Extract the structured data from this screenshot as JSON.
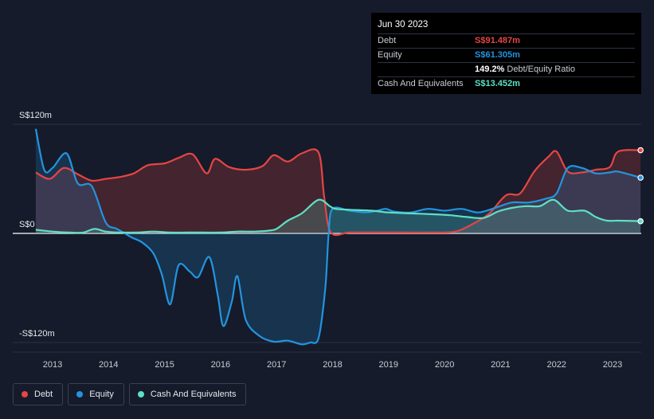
{
  "tooltip": {
    "date": "Jun 30 2023",
    "rows": [
      {
        "label": "Debt",
        "value": "S$91.487m"
      },
      {
        "label": "Equity",
        "value": "S$61.305m"
      },
      {
        "label": "",
        "value": "149.2%",
        "suffix": "Debt/Equity Ratio"
      },
      {
        "label": "Cash And Equivalents",
        "value": "S$13.452m"
      }
    ]
  },
  "legend": [
    {
      "label": "Debt"
    },
    {
      "label": "Equity"
    },
    {
      "label": "Cash And Equivalents"
    }
  ],
  "colors": {
    "debt": "#e64545",
    "equity": "#2394df",
    "cash": "#5ee0c4",
    "background": "#151b2a"
  },
  "chart_data": {
    "type": "area",
    "title": "",
    "xlabel": "",
    "ylabel": "",
    "ylim": [
      -130,
      130
    ],
    "y_tick_labels": [
      {
        "value": 120,
        "label": "S$120m"
      },
      {
        "value": 0,
        "label": "S$0"
      },
      {
        "value": -120,
        "label": "-S$120m"
      }
    ],
    "x_ticks": [
      "2013",
      "2014",
      "2015",
      "2016",
      "2017",
      "2018",
      "2019",
      "2020",
      "2021",
      "2022",
      "2023"
    ],
    "xlim": [
      2012.7,
      2023.5
    ],
    "series": [
      {
        "name": "Debt",
        "points": [
          [
            2012.7,
            67
          ],
          [
            2012.95,
            60
          ],
          [
            2013.2,
            72
          ],
          [
            2013.45,
            65
          ],
          [
            2013.7,
            58
          ],
          [
            2013.95,
            60
          ],
          [
            2014.2,
            62
          ],
          [
            2014.45,
            66
          ],
          [
            2014.7,
            75
          ],
          [
            2015.0,
            77
          ],
          [
            2015.25,
            83
          ],
          [
            2015.5,
            87
          ],
          [
            2015.75,
            66
          ],
          [
            2015.9,
            82
          ],
          [
            2016.15,
            73
          ],
          [
            2016.45,
            70
          ],
          [
            2016.75,
            74
          ],
          [
            2016.95,
            86
          ],
          [
            2017.2,
            79
          ],
          [
            2017.45,
            88
          ],
          [
            2017.75,
            89
          ],
          [
            2017.85,
            40
          ],
          [
            2017.97,
            1
          ],
          [
            2018.3,
            1
          ],
          [
            2018.8,
            1
          ],
          [
            2019.3,
            1
          ],
          [
            2019.8,
            1
          ],
          [
            2020.2,
            2
          ],
          [
            2020.55,
            12
          ],
          [
            2020.8,
            22
          ],
          [
            2021.1,
            42
          ],
          [
            2021.35,
            44
          ],
          [
            2021.6,
            68
          ],
          [
            2021.85,
            84
          ],
          [
            2022.0,
            90
          ],
          [
            2022.2,
            68
          ],
          [
            2022.45,
            67
          ],
          [
            2022.7,
            70
          ],
          [
            2022.95,
            73
          ],
          [
            2023.1,
            90
          ],
          [
            2023.5,
            91.5
          ]
        ]
      },
      {
        "name": "Equity",
        "points": [
          [
            2012.7,
            115
          ],
          [
            2012.85,
            70
          ],
          [
            2013.0,
            72
          ],
          [
            2013.25,
            88
          ],
          [
            2013.45,
            55
          ],
          [
            2013.7,
            52
          ],
          [
            2013.95,
            12
          ],
          [
            2014.15,
            5
          ],
          [
            2014.4,
            -4
          ],
          [
            2014.6,
            -10
          ],
          [
            2014.8,
            -22
          ],
          [
            2014.95,
            -45
          ],
          [
            2015.1,
            -78
          ],
          [
            2015.25,
            -35
          ],
          [
            2015.45,
            -42
          ],
          [
            2015.6,
            -48
          ],
          [
            2015.8,
            -26
          ],
          [
            2015.95,
            -68
          ],
          [
            2016.05,
            -102
          ],
          [
            2016.2,
            -75
          ],
          [
            2016.3,
            -47
          ],
          [
            2016.45,
            -95
          ],
          [
            2016.7,
            -113
          ],
          [
            2016.95,
            -119
          ],
          [
            2017.2,
            -118
          ],
          [
            2017.45,
            -122
          ],
          [
            2017.6,
            -120
          ],
          [
            2017.75,
            -115
          ],
          [
            2017.87,
            -60
          ],
          [
            2017.93,
            0
          ],
          [
            2018.0,
            27
          ],
          [
            2018.3,
            25
          ],
          [
            2018.6,
            23
          ],
          [
            2018.8,
            25
          ],
          [
            2018.95,
            27
          ],
          [
            2019.1,
            24
          ],
          [
            2019.4,
            23
          ],
          [
            2019.7,
            27
          ],
          [
            2020.0,
            25
          ],
          [
            2020.3,
            27
          ],
          [
            2020.6,
            23
          ],
          [
            2020.9,
            28
          ],
          [
            2021.2,
            34
          ],
          [
            2021.5,
            34
          ],
          [
            2021.8,
            38
          ],
          [
            2022.0,
            44
          ],
          [
            2022.2,
            72
          ],
          [
            2022.45,
            72
          ],
          [
            2022.7,
            66
          ],
          [
            2022.95,
            67
          ],
          [
            2023.1,
            68
          ],
          [
            2023.5,
            61.3
          ]
        ]
      },
      {
        "name": "Cash And Equivalents",
        "points": [
          [
            2012.7,
            4
          ],
          [
            2013.0,
            2
          ],
          [
            2013.3,
            1
          ],
          [
            2013.55,
            1
          ],
          [
            2013.75,
            5
          ],
          [
            2013.95,
            2
          ],
          [
            2014.2,
            1
          ],
          [
            2014.5,
            1
          ],
          [
            2014.8,
            2
          ],
          [
            2015.1,
            1
          ],
          [
            2015.4,
            1
          ],
          [
            2015.7,
            1
          ],
          [
            2016.0,
            1
          ],
          [
            2016.3,
            2
          ],
          [
            2016.6,
            2
          ],
          [
            2016.85,
            3
          ],
          [
            2017.0,
            5
          ],
          [
            2017.2,
            14
          ],
          [
            2017.45,
            22
          ],
          [
            2017.75,
            37
          ],
          [
            2017.95,
            30
          ],
          [
            2018.05,
            27
          ],
          [
            2018.3,
            26
          ],
          [
            2018.7,
            25
          ],
          [
            2019.0,
            23
          ],
          [
            2019.4,
            22
          ],
          [
            2019.8,
            21
          ],
          [
            2020.1,
            20
          ],
          [
            2020.4,
            18
          ],
          [
            2020.7,
            17
          ],
          [
            2020.95,
            24
          ],
          [
            2021.2,
            28
          ],
          [
            2021.45,
            30
          ],
          [
            2021.7,
            30
          ],
          [
            2021.95,
            37
          ],
          [
            2022.2,
            25
          ],
          [
            2022.5,
            25
          ],
          [
            2022.7,
            18
          ],
          [
            2022.9,
            14
          ],
          [
            2023.1,
            14
          ],
          [
            2023.5,
            13.45
          ]
        ]
      }
    ]
  }
}
